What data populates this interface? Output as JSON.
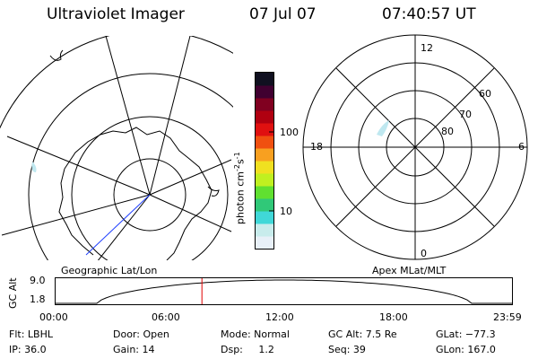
{
  "header": {
    "instrument": "Ultraviolet Imager",
    "date": "07 Jul 07",
    "time": "07:40:57 UT"
  },
  "colorbar": {
    "unit": "photon cm",
    "unit_sup1": "-2",
    "unit_mid": "s",
    "unit_sup2": "-1",
    "tick_100": "100",
    "tick_10": "10",
    "colors": [
      "#e8f0f8",
      "#c8ecec",
      "#40d8d8",
      "#30c878",
      "#60e030",
      "#c0f020",
      "#f0e020",
      "#f8a020",
      "#f05010",
      "#e01010",
      "#b00010",
      "#800020",
      "#400030",
      "#101020"
    ]
  },
  "geo_panel": {
    "caption": "Geographic Lat/Lon"
  },
  "mag_panel": {
    "caption": "Apex MLat/MLT",
    "mlt_labels": {
      "top": "12",
      "bottom": "0",
      "left": "18",
      "right": "6"
    },
    "lat_labels": {
      "l60": "60",
      "l70": "70",
      "l80": "80"
    }
  },
  "timeline": {
    "ylabel": "GC Alt",
    "ymax": "9.0",
    "ymin": "1.8",
    "ticks": [
      "00:00",
      "06:00",
      "12:00",
      "18:00",
      "23:59"
    ],
    "current_hour": 7.68,
    "marker_color": "#e00000"
  },
  "info": {
    "flt": "Flt: LBHL",
    "ip": "IP: 36.0",
    "door": "Door: Open",
    "gain": "Gain: 14",
    "mode": "Mode: Normal",
    "dsp": "Dsp:     1.2",
    "gcalt": "GC Alt: 7.5 Re",
    "seq": "Seq: 39",
    "glat": "GLat: −77.3",
    "glon": "GLon: 167.0"
  }
}
